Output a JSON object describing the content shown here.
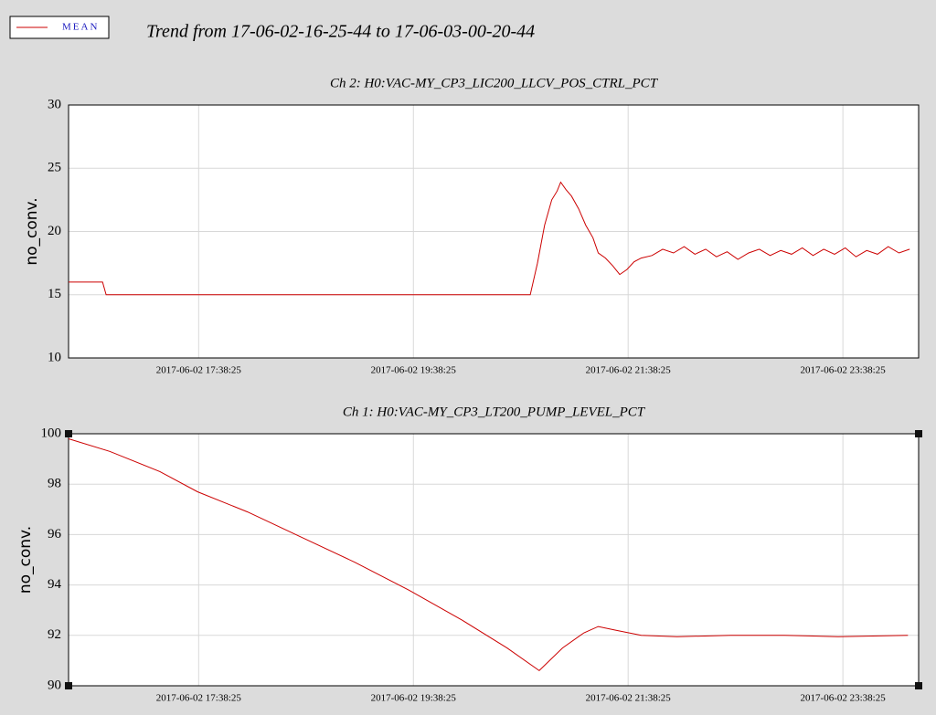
{
  "title": "Trend from 17-06-02-16-25-44 to 17-06-03-00-20-44",
  "chart_data": [
    {
      "type": "line",
      "title": "Ch 2: H0:VAC-MY_CP3_LIC200_LLCV_POS_CTRL_PCT",
      "y_label": "no_conv.",
      "xlim": [
        "2017-06-02 16:25:44",
        "2017-06-03 00:20:44"
      ],
      "xticks": [
        "2017-06-02 17:38:25",
        "2017-06-02 19:38:25",
        "2017-06-02 21:38:25",
        "2017-06-02 23:38:25"
      ],
      "ylim": [
        10,
        30
      ],
      "yticks": [
        10,
        15,
        20,
        25,
        30
      ],
      "grid": true,
      "x": [
        "2017-06-02 16:25:44",
        "2017-06-02 16:44:44",
        "2017-06-02 16:46:44",
        "2017-06-02 20:43:44",
        "2017-06-02 20:47:44",
        "2017-06-02 20:51:44",
        "2017-06-02 20:55:44",
        "2017-06-02 20:58:44",
        "2017-06-02 21:00:44",
        "2017-06-02 21:03:44",
        "2017-06-02 21:06:44",
        "2017-06-02 21:10:44",
        "2017-06-02 21:14:44",
        "2017-06-02 21:18:44",
        "2017-06-02 21:21:44",
        "2017-06-02 21:25:44",
        "2017-06-02 21:29:44",
        "2017-06-02 21:33:44",
        "2017-06-02 21:37:44",
        "2017-06-02 21:41:44",
        "2017-06-02 21:45:44",
        "2017-06-02 21:51:44",
        "2017-06-02 21:57:44",
        "2017-06-02 22:03:44",
        "2017-06-02 22:09:44",
        "2017-06-02 22:15:44",
        "2017-06-02 22:21:44",
        "2017-06-02 22:27:44",
        "2017-06-02 22:33:44",
        "2017-06-02 22:39:44",
        "2017-06-02 22:45:44",
        "2017-06-02 22:51:44",
        "2017-06-02 22:57:44",
        "2017-06-02 23:03:44",
        "2017-06-02 23:09:44",
        "2017-06-02 23:15:44",
        "2017-06-02 23:21:44",
        "2017-06-02 23:27:44",
        "2017-06-02 23:33:44",
        "2017-06-02 23:39:44",
        "2017-06-02 23:45:44",
        "2017-06-02 23:51:44",
        "2017-06-02 23:57:44",
        "2017-06-03 00:03:44",
        "2017-06-03 00:09:44",
        "2017-06-03 00:15:44"
      ],
      "series": [
        {
          "name": "MEAN",
          "color": "#cc0000",
          "values": [
            16.0,
            16.0,
            15.0,
            15.0,
            17.5,
            20.5,
            22.5,
            23.2,
            23.9,
            23.3,
            22.8,
            21.8,
            20.5,
            19.5,
            18.3,
            17.9,
            17.3,
            16.6,
            17.0,
            17.6,
            17.9,
            18.1,
            18.6,
            18.3,
            18.8,
            18.2,
            18.6,
            18.0,
            18.4,
            17.8,
            18.3,
            18.6,
            18.1,
            18.5,
            18.2,
            18.7,
            18.1,
            18.6,
            18.2,
            18.7,
            18.0,
            18.5,
            18.2,
            18.8,
            18.3,
            18.6
          ]
        }
      ]
    },
    {
      "type": "line",
      "title": "Ch 1: H0:VAC-MY_CP3_LT200_PUMP_LEVEL_PCT",
      "y_label": "no_conv.",
      "xlim": [
        "2017-06-02 16:25:44",
        "2017-06-03 00:20:44"
      ],
      "xticks": [
        "2017-06-02 17:38:25",
        "2017-06-02 19:38:25",
        "2017-06-02 21:38:25",
        "2017-06-02 23:38:25"
      ],
      "ylim": [
        90,
        100
      ],
      "yticks": [
        90,
        92,
        94,
        96,
        98,
        100
      ],
      "grid": true,
      "x": [
        "2017-06-02 16:25:44",
        "2017-06-02 16:48:44",
        "2017-06-02 17:16:44",
        "2017-06-02 17:37:44",
        "2017-06-02 18:05:44",
        "2017-06-02 18:35:44",
        "2017-06-02 19:05:44",
        "2017-06-02 19:35:44",
        "2017-06-02 20:05:44",
        "2017-06-02 20:30:44",
        "2017-06-02 20:48:44",
        "2017-06-02 21:01:44",
        "2017-06-02 21:13:44",
        "2017-06-02 21:21:44",
        "2017-06-02 21:31:44",
        "2017-06-02 21:45:44",
        "2017-06-02 22:05:44",
        "2017-06-02 22:35:44",
        "2017-06-02 23:05:44",
        "2017-06-02 23:35:44",
        "2017-06-03 00:14:44"
      ],
      "series": [
        {
          "name": "MEAN",
          "color": "#cc0000",
          "values": [
            99.8,
            99.3,
            98.5,
            97.7,
            96.9,
            95.9,
            94.9,
            93.8,
            92.6,
            91.5,
            90.6,
            91.5,
            92.1,
            92.35,
            92.2,
            92.0,
            91.95,
            92.0,
            92.0,
            91.95,
            92.0
          ]
        }
      ]
    }
  ]
}
